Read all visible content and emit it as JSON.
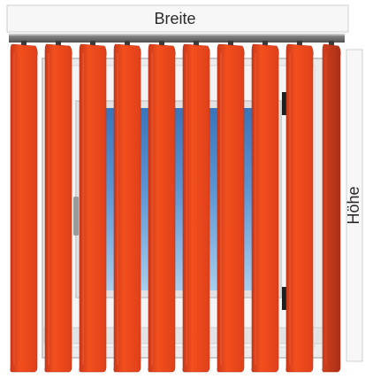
{
  "labels": {
    "width": "Breite",
    "height": "Höhe"
  },
  "slats": {
    "count": 10
  },
  "colors": {
    "slat_light": "#f24f1d",
    "slat_mid": "#e0401a",
    "slat_dark": "#b7331a",
    "sky_light": "#a9cdec",
    "sky_mid": "#5d95d3",
    "sky_dark": "#3a74b9",
    "frame": "#e6e6e6",
    "frame_edge": "#c8c8c8",
    "rail": "#6b6b6b",
    "handle": "#1f1f1f"
  }
}
